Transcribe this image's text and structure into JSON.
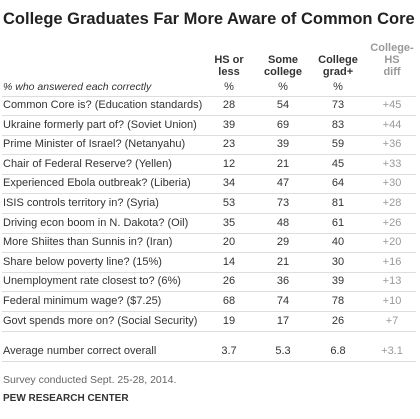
{
  "title": "College Graduates Far More Aware of Common Core",
  "columns": [
    [
      "HS or",
      "less"
    ],
    [
      "Some",
      "college"
    ],
    [
      "College",
      "grad+"
    ],
    [
      "College-",
      "HS",
      "diff"
    ]
  ],
  "subheader": {
    "label": "% who answered each correctly",
    "cells": [
      "%",
      "%",
      "%"
    ]
  },
  "rows": [
    [
      "Common Core is? (Education standards)",
      28,
      54,
      73,
      "+45"
    ],
    [
      "Ukraine formerly part of? (Soviet Union)",
      39,
      69,
      83,
      "+44"
    ],
    [
      "Prime Minister of Israel? (Netanyahu)",
      23,
      39,
      59,
      "+36"
    ],
    [
      "Chair of Federal Reserve? (Yellen)",
      12,
      21,
      45,
      "+33"
    ],
    [
      "Experienced Ebola outbreak? (Liberia)",
      34,
      47,
      64,
      "+30"
    ],
    [
      "ISIS controls territory in? (Syria)",
      53,
      73,
      81,
      "+28"
    ],
    [
      "Driving econ boom in N. Dakota? (Oil)",
      35,
      48,
      61,
      "+26"
    ],
    [
      "More Shiites than Sunnis in? (Iran)",
      20,
      29,
      40,
      "+20"
    ],
    [
      "Share below poverty line? (15%)",
      14,
      21,
      30,
      "+16"
    ],
    [
      "Unemployment rate closest to? (6%)",
      26,
      36,
      39,
      "+13"
    ],
    [
      "Federal minimum wage? ($7.25)",
      68,
      74,
      78,
      "+10"
    ],
    [
      "Govt spends more on? (Social Security)",
      19,
      17,
      26,
      "+7"
    ]
  ],
  "average": [
    "Average number correct overall",
    3.7,
    5.3,
    6.8,
    "+3.1"
  ],
  "note": "Survey conducted Sept. 25-28, 2014.",
  "source": "PEW RESEARCH CENTER"
}
